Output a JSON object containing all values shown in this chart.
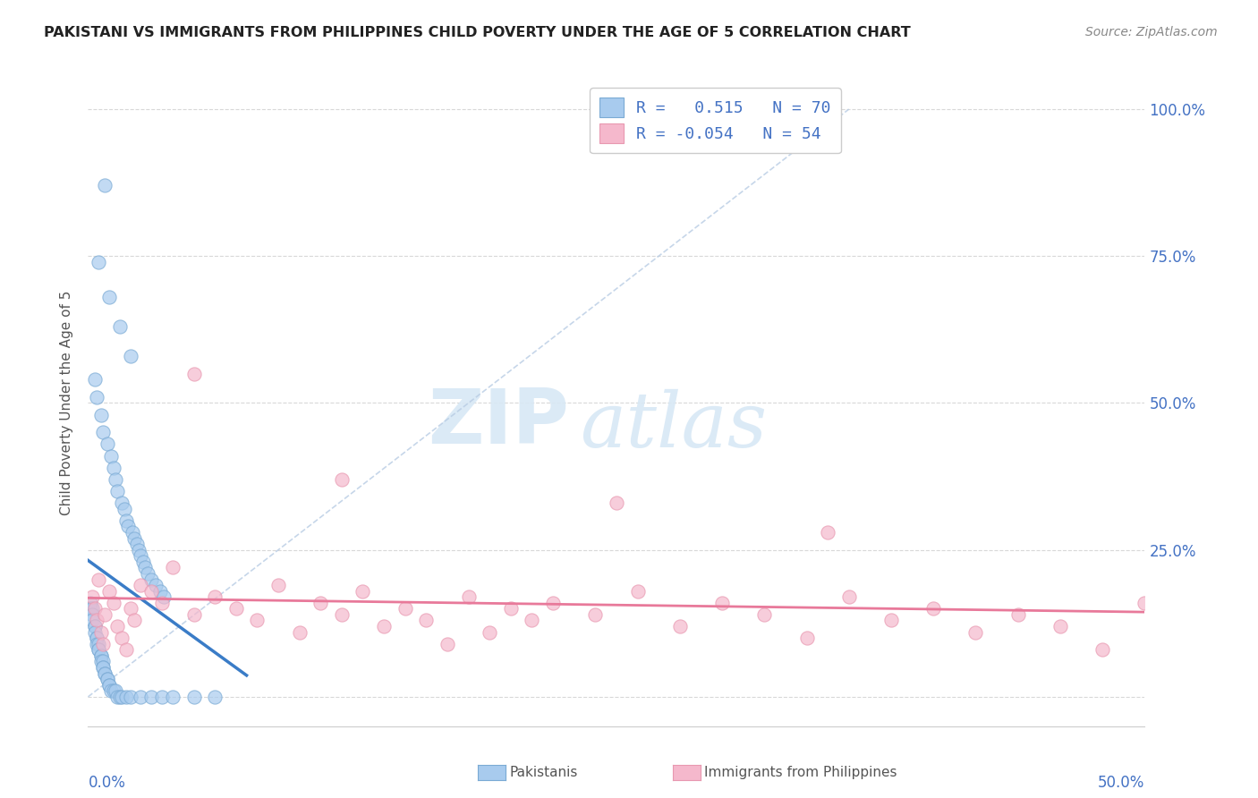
{
  "title": "PAKISTANI VS IMMIGRANTS FROM PHILIPPINES CHILD POVERTY UNDER THE AGE OF 5 CORRELATION CHART",
  "source": "Source: ZipAtlas.com",
  "ylabel": "Child Poverty Under the Age of 5",
  "legend_pakistanis": "Pakistanis",
  "legend_philippines": "Immigrants from Philippines",
  "r_pakistani": 0.515,
  "n_pakistani": 70,
  "r_philippines": -0.054,
  "n_philippines": 54,
  "xlim": [
    0.0,
    0.5
  ],
  "ylim": [
    0.0,
    1.0
  ],
  "color_pakistani_fill": "#A8CBEE",
  "color_pakistani_edge": "#7AAAD4",
  "color_philippines_fill": "#F5B8CC",
  "color_philippines_edge": "#E898B0",
  "color_line_pakistani": "#3A7CC7",
  "color_line_philippines": "#E8799A",
  "color_diagonal": "#B8CCE4",
  "color_grid": "#D8D8D8",
  "color_ytick_right": "#4472C4",
  "background_color": "#FFFFFF",
  "watermark_zip": "ZIP",
  "watermark_atlas": "atlas",
  "watermark_color": "#D8E8F5",
  "title_fontsize": 11.5,
  "source_fontsize": 10,
  "ytick_vals": [
    0.0,
    0.25,
    0.5,
    0.75,
    1.0
  ],
  "ytick_labels_right": [
    "",
    "25.0%",
    "50.0%",
    "75.0%",
    "100.0%"
  ],
  "legend_r1": "R =   0.515   N = 70",
  "legend_r2": "R = -0.054   N = 54"
}
